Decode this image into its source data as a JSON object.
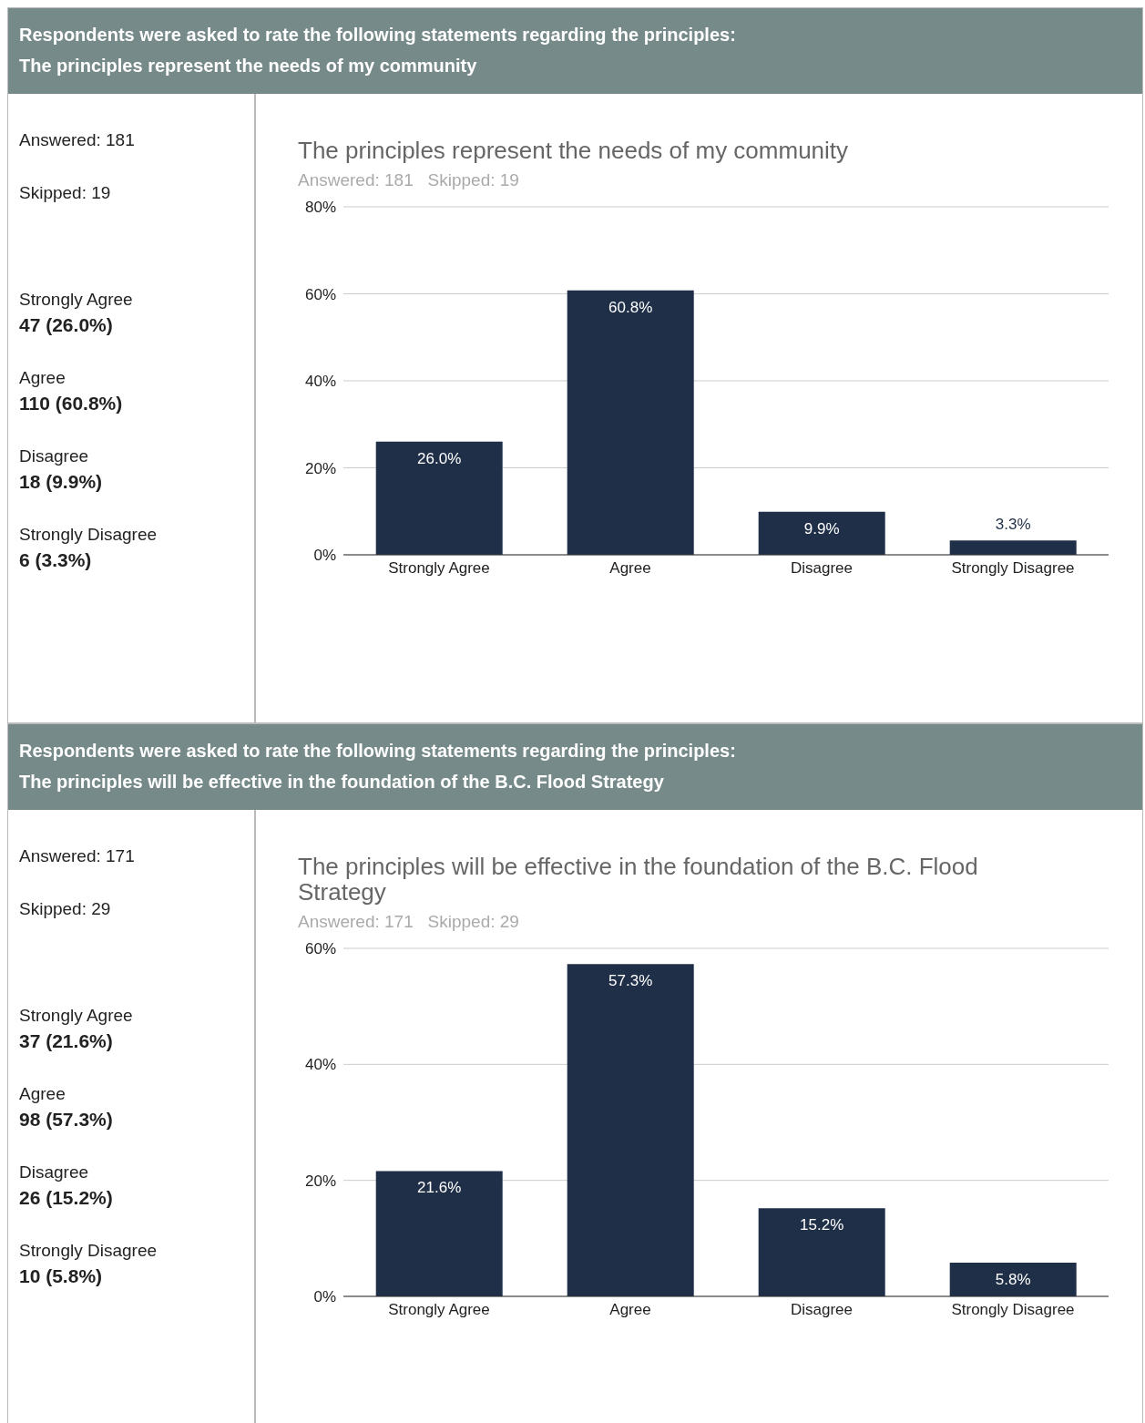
{
  "chart_data": [
    {
      "type": "other",
      "title": "Respondents were asked to rate the following statements regarding the principles:",
      "subtitle": "The principles represent the needs of my community",
      "annotations": [
        "Answered: 181",
        "Skipped: 19",
        "Strongly Agree",
        "47 (26.0%)",
        "Agree",
        "110 (60.8%)",
        "Disagree",
        "18 (9.9%)",
        "Strongly Disagree",
        "6 (3.3%)"
      ]
    },
    {
      "type": "bar",
      "title": "The principles represent the needs of my community",
      "subtitle": "Answered: 181   Skipped: 19",
      "categories": [
        "Strongly Agree",
        "Agree",
        "Disagree",
        "Strongly Disagree"
      ],
      "values": [
        26.0,
        60.8,
        9.9,
        3.3
      ],
      "value_labels": [
        "26.0%",
        "60.8%",
        "9.9%",
        "3.3%"
      ],
      "color": "#1f2f48",
      "ylim": [
        0,
        80
      ],
      "yticks": [
        {
          "value": 0,
          "label": "0%"
        },
        {
          "value": 20,
          "label": "20%"
        },
        {
          "value": 40,
          "label": "40%"
        },
        {
          "value": 60,
          "label": "60%"
        },
        {
          "value": 80,
          "label": "80%"
        }
      ],
      "grid": "y"
    },
    {
      "type": "other",
      "title": "Respondents were asked to rate the following statements regarding the principles:",
      "subtitle": "The principles will be effective in the foundation of the B.C. Flood Strategy",
      "annotations": [
        "Answered: 171",
        "Skipped: 29",
        "Strongly Agree",
        "37 (21.6%)",
        "Agree",
        "98 (57.3%)",
        "Disagree",
        "26 (15.2%)",
        "Strongly Disagree",
        "10 (5.8%)"
      ]
    },
    {
      "type": "bar",
      "title": "The principles will be effective in the foundation of the B.C. Flood Strategy",
      "subtitle": "Answered: 171   Skipped: 29",
      "categories": [
        "Strongly Agree",
        "Agree",
        "Disagree",
        "Strongly Disagree"
      ],
      "values": [
        21.6,
        57.3,
        15.2,
        5.8
      ],
      "value_labels": [
        "21.6%",
        "57.3%",
        "15.2%",
        "5.8%"
      ],
      "color": "#1f2f48",
      "ylim": [
        0,
        60
      ],
      "yticks": [
        {
          "value": 0,
          "label": "0%"
        },
        {
          "value": 20,
          "label": "20%"
        },
        {
          "value": 40,
          "label": "40%"
        },
        {
          "value": 60,
          "label": "60%"
        }
      ],
      "grid": "y"
    }
  ]
}
